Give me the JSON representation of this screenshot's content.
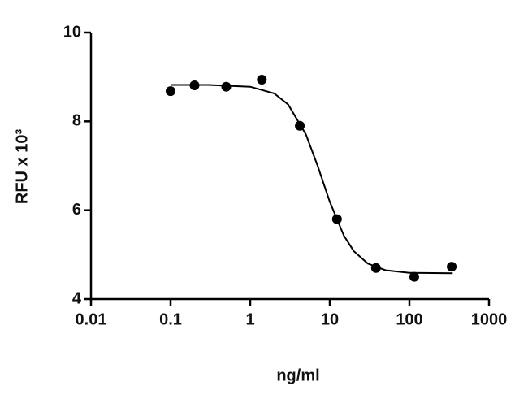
{
  "chart_data": {
    "type": "scatter",
    "xlabel": "ng/ml",
    "ylabel": "RFU x 10³",
    "x": [
      0.1,
      0.2,
      0.5,
      1.4,
      4.2,
      12.3,
      38,
      115,
      340
    ],
    "values": [
      8.68,
      8.81,
      8.78,
      8.94,
      7.9,
      5.8,
      4.7,
      4.5,
      4.73
    ],
    "color": "#000000",
    "fit": {
      "x": [
        0.1,
        0.3,
        1,
        2,
        3,
        5,
        7,
        10,
        15,
        20,
        30,
        50,
        100,
        350
      ],
      "values": [
        8.82,
        8.82,
        8.78,
        8.63,
        8.38,
        7.71,
        7.01,
        6.19,
        5.43,
        5.08,
        4.8,
        4.65,
        4.59,
        4.58
      ]
    },
    "xscale": "log",
    "xlim": [
      0.01,
      1000
    ],
    "xticks": [
      0.01,
      0.1,
      1,
      10,
      100,
      1000
    ],
    "ylim": [
      4,
      10
    ],
    "yticks": [
      4,
      6,
      8,
      10
    ]
  }
}
